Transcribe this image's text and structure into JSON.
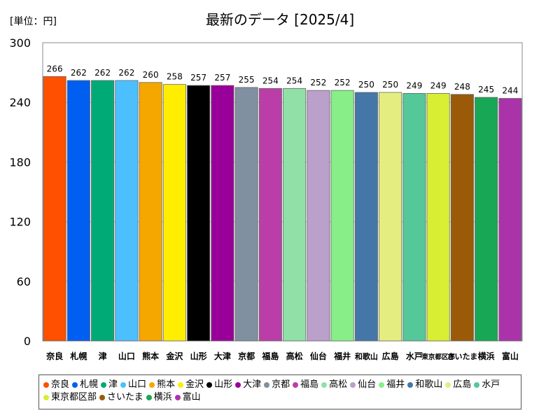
{
  "unit_label": "[単位：円]",
  "title": "最新のデータ [2025/4]",
  "chart_data": {
    "type": "bar",
    "categories": [
      "奈良",
      "札幌",
      "津",
      "山口",
      "熊本",
      "金沢",
      "山形",
      "大津",
      "京都",
      "福島",
      "高松",
      "仙台",
      "福井",
      "和歌山",
      "広島",
      "水戸",
      "東京都区部",
      "さいたま",
      "横浜",
      "富山"
    ],
    "values": [
      266,
      262,
      262,
      262,
      260,
      258,
      257,
      257,
      255,
      254,
      254,
      252,
      252,
      250,
      250,
      249,
      249,
      248,
      245,
      244
    ],
    "colors": [
      "#ff4f00",
      "#005ff0",
      "#00aa77",
      "#4cc0ff",
      "#f5a700",
      "#ffee00",
      "#000000",
      "#990099",
      "#8090a0",
      "#bb3ea8",
      "#90e0a8",
      "#bba0cc",
      "#88ee88",
      "#4477a8",
      "#e4ee80",
      "#55c899",
      "#d8ee33",
      "#9a5a08",
      "#18a855",
      "#aa33aa"
    ],
    "ylim": [
      0,
      300
    ],
    "yticks": [
      0,
      60,
      120,
      180,
      240,
      300
    ],
    "legend_position": "bottom"
  }
}
